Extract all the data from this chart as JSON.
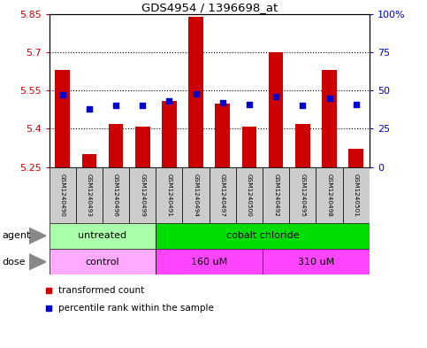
{
  "title": "GDS4954 / 1396698_at",
  "samples": [
    "GSM1240490",
    "GSM1240493",
    "GSM1240496",
    "GSM1240499",
    "GSM1240491",
    "GSM1240494",
    "GSM1240497",
    "GSM1240500",
    "GSM1240492",
    "GSM1240495",
    "GSM1240498",
    "GSM1240501"
  ],
  "transformed_count": [
    5.63,
    5.3,
    5.42,
    5.41,
    5.51,
    5.84,
    5.5,
    5.41,
    5.7,
    5.42,
    5.63,
    5.32
  ],
  "percentile_rank": [
    47,
    38,
    40,
    40,
    43,
    48,
    42,
    41,
    46,
    40,
    45,
    41
  ],
  "ylim": [
    5.25,
    5.85
  ],
  "y_ticks": [
    5.25,
    5.4,
    5.55,
    5.7,
    5.85
  ],
  "y_tick_labels": [
    "5.25",
    "5.4",
    "5.55",
    "5.7",
    "5.85"
  ],
  "right_yticks": [
    0,
    25,
    50,
    75,
    100
  ],
  "right_ytick_labels": [
    "0",
    "25",
    "50",
    "75",
    "100%"
  ],
  "bar_color": "#cc0000",
  "dot_color": "#0000cc",
  "bar_bottom": 5.25,
  "agent_groups": [
    {
      "label": "untreated",
      "start": 0,
      "end": 4,
      "color": "#aaffaa"
    },
    {
      "label": "cobalt chloride",
      "start": 4,
      "end": 12,
      "color": "#00dd00"
    }
  ],
  "dose_groups": [
    {
      "label": "control",
      "start": 0,
      "end": 4,
      "color": "#ffaaff"
    },
    {
      "label": "160 uM",
      "start": 4,
      "end": 8,
      "color": "#ff44ff"
    },
    {
      "label": "310 uM",
      "start": 8,
      "end": 12,
      "color": "#ff44ff"
    }
  ],
  "legend_red_label": "transformed count",
  "legend_blue_label": "percentile rank within the sample",
  "label_bg_color": "#cccccc"
}
